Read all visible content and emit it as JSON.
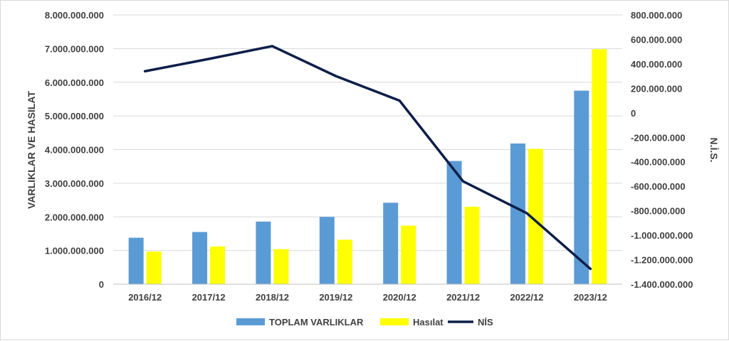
{
  "chart_data": {
    "type": "bar",
    "categories": [
      "2016/12",
      "2017/12",
      "2018/12",
      "2019/12",
      "2020/12",
      "2021/12",
      "2022/12",
      "2023/12"
    ],
    "series": [
      {
        "name": "TOPLAM VARLIKLAR",
        "type": "bar",
        "axis": "left",
        "color": "#5b9bd5",
        "values": [
          1380000000,
          1550000000,
          1860000000,
          2000000000,
          2420000000,
          3660000000,
          4180000000,
          5750000000
        ]
      },
      {
        "name": "Hasılat",
        "type": "bar",
        "axis": "left",
        "color": "#ffff00",
        "values": [
          970000000,
          1120000000,
          1040000000,
          1320000000,
          1740000000,
          2300000000,
          4020000000,
          6980000000
        ]
      },
      {
        "name": "NİS",
        "type": "line",
        "axis": "right",
        "color": "#0d1e4a",
        "values": [
          340000000,
          440000000,
          545000000,
          300000000,
          100000000,
          -560000000,
          -820000000,
          -1275000000
        ]
      }
    ],
    "ylabel": "VARLIKLAR VE HASILAT",
    "y2label": "N.İ.S.",
    "ylim": [
      0,
      8000000000
    ],
    "y2lim": [
      -1400000000,
      800000000
    ],
    "yticks": [
      "0",
      "1.000.000.000",
      "2.000.000.000",
      "3.000.000.000",
      "4.000.000.000",
      "5.000.000.000",
      "6.000.000.000",
      "7.000.000.000",
      "8.000.000.000"
    ],
    "y2ticks": [
      "-1.400.000.000",
      "-1.200.000.000",
      "-1.000.000.000",
      "-800.000.000",
      "-600.000.000",
      "-400.000.000",
      "-200.000.000",
      "0",
      "200.000.000",
      "400.000.000",
      "600.000.000",
      "800.000.000"
    ],
    "grid": true,
    "legend_position": "bottom"
  }
}
